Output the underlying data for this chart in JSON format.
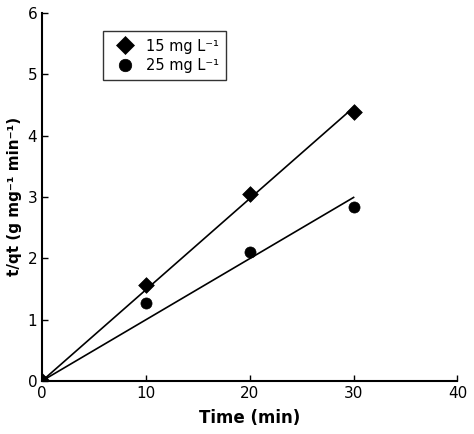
{
  "series1_label": "15 mg L⁻¹",
  "series2_label": "25 mg L⁻¹",
  "series1_x": [
    0,
    10,
    20,
    30
  ],
  "series1_y": [
    0,
    1.57,
    3.05,
    4.38
  ],
  "series2_x": [
    0,
    10,
    20,
    30
  ],
  "series2_y": [
    0,
    1.27,
    2.1,
    2.83
  ],
  "line1_x": [
    0,
    30
  ],
  "line2_x": [
    0,
    30
  ],
  "xlabel": "Time (min)",
  "ylabel": "t/qt (g mg⁻¹ min⁻¹)",
  "xlim": [
    0,
    40
  ],
  "ylim": [
    0,
    6
  ],
  "xticks": [
    0,
    10,
    20,
    30,
    40
  ],
  "yticks": [
    0,
    1,
    2,
    3,
    4,
    5,
    6
  ],
  "marker1": "D",
  "marker2": "o",
  "color": "#000000",
  "linecolor": "#000000",
  "markersize1": 8,
  "markersize2": 8,
  "figwidth": 4.74,
  "figheight": 4.34,
  "dpi": 100
}
